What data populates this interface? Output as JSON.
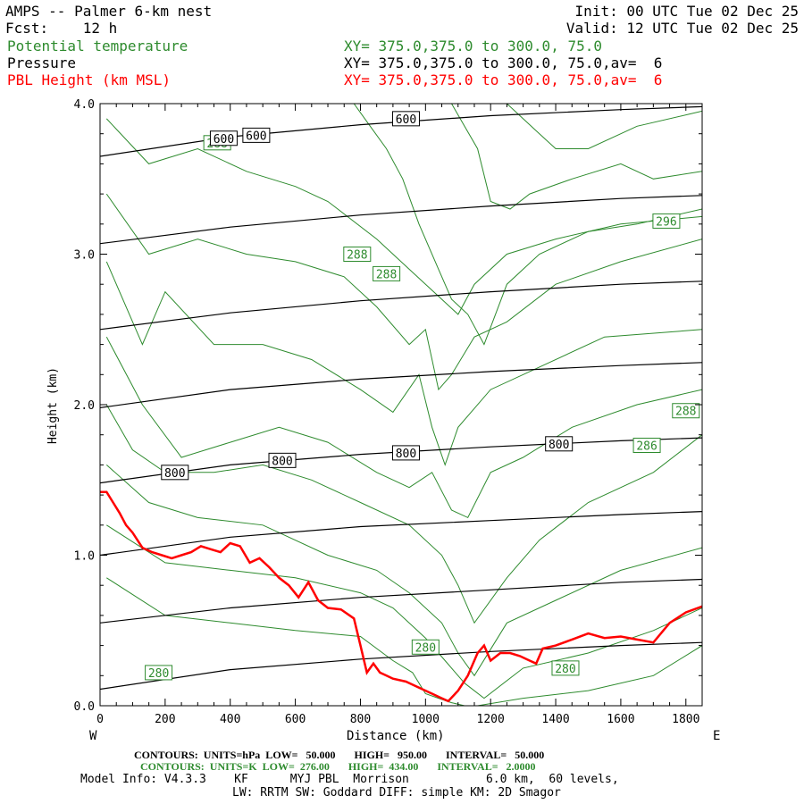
{
  "header": {
    "title": "AMPS -- Palmer 6-km nest",
    "fcst": "Fcst:    12 h",
    "init": "Init: 00 UTC Tue 02 Dec 25",
    "valid": "Valid: 12 UTC Tue 02 Dec 25",
    "fields": [
      {
        "name": "Potential temperature",
        "xy": "XY= 375.0,375.0 to 300.0, 75.0",
        "color": "#2e8b2e"
      },
      {
        "name": "Pressure",
        "xy": "XY= 375.0,375.0 to 300.0, 75.0,av=  6",
        "color": "#000000"
      },
      {
        "name": "PBL Height (km MSL)",
        "xy": "XY= 375.0,375.0 to 300.0, 75.0,av=  6",
        "color": "#ff0000"
      }
    ]
  },
  "footer": {
    "pressure_contours": "CONTOURS:  UNITS=hPa  LOW=   50.000       HIGH=   950.00       INTERVAL=   50.000",
    "theta_contours": "CONTOURS:  UNITS=K  LOW=  276.00       HIGH=  434.00       INTERVAL=   2.0000",
    "model_info_1": "Model Info: V4.3.3    KF      MYJ PBL  Morrison           6.0 km,  60 levels,",
    "model_info_2": "LW: RRTM SW: Goddard DIFF: simple KM: 2D Smagor"
  },
  "colors": {
    "theta": "#2e8b2e",
    "pressure": "#000000",
    "pbl": "#ff0000"
  },
  "chart_data": {
    "type": "line",
    "title": "AMPS -- Palmer 6-km nest",
    "xlabel": "Distance (km)",
    "ylabel": "Height (km)",
    "xlim": [
      0,
      1850
    ],
    "ylim": [
      0,
      4.0
    ],
    "xticks": [
      0,
      200,
      400,
      600,
      800,
      1000,
      1200,
      1400,
      1600,
      1800
    ],
    "yticks": [
      0.0,
      1.0,
      2.0,
      3.0,
      4.0
    ],
    "ytick_labels": [
      "0.0",
      "1.0",
      "2.0",
      "3.0",
      "4.0"
    ],
    "x_left_end": "W",
    "x_right_end": "E",
    "pressure_lines": [
      {
        "x": [
          0,
          400,
          800,
          1200,
          1600,
          1850
        ],
        "y": [
          3.65,
          3.78,
          3.86,
          3.92,
          3.96,
          3.98
        ]
      },
      {
        "x": [
          0,
          400,
          800,
          1200,
          1600,
          1850
        ],
        "y": [
          3.07,
          3.18,
          3.26,
          3.32,
          3.37,
          3.39
        ]
      },
      {
        "x": [
          0,
          400,
          800,
          1200,
          1600,
          1850
        ],
        "y": [
          2.5,
          2.61,
          2.69,
          2.75,
          2.8,
          2.82
        ]
      },
      {
        "x": [
          0,
          400,
          800,
          1200,
          1600,
          1850
        ],
        "y": [
          1.98,
          2.1,
          2.17,
          2.22,
          2.26,
          2.28
        ]
      },
      {
        "x": [
          0,
          400,
          800,
          1200,
          1600,
          1850
        ],
        "y": [
          1.48,
          1.6,
          1.67,
          1.72,
          1.76,
          1.78
        ]
      },
      {
        "x": [
          0,
          400,
          800,
          1200,
          1600,
          1850
        ],
        "y": [
          1.0,
          1.12,
          1.19,
          1.23,
          1.27,
          1.29
        ]
      },
      {
        "x": [
          0,
          400,
          800,
          1200,
          1600,
          1850
        ],
        "y": [
          0.55,
          0.65,
          0.72,
          0.77,
          0.82,
          0.84
        ]
      },
      {
        "x": [
          0,
          400,
          800,
          1200,
          1600,
          1850
        ],
        "y": [
          0.11,
          0.24,
          0.31,
          0.36,
          0.4,
          0.42
        ]
      }
    ],
    "pressure_labels": [
      {
        "text": "600",
        "x": 380,
        "y": 3.77
      },
      {
        "text": "600",
        "x": 480,
        "y": 3.79
      },
      {
        "text": "600",
        "x": 940,
        "y": 3.9
      },
      {
        "text": "800",
        "x": 230,
        "y": 1.55
      },
      {
        "text": "800",
        "x": 560,
        "y": 1.63
      },
      {
        "text": "800",
        "x": 940,
        "y": 1.68
      },
      {
        "text": "800",
        "x": 1410,
        "y": 1.74
      }
    ],
    "theta_lines": [
      {
        "x": [
          20,
          200,
          400,
          600,
          800,
          900,
          960,
          1000,
          1040,
          1080,
          1120,
          1160,
          1300,
          1500,
          1700,
          1850
        ],
        "y": [
          0.85,
          0.6,
          0.55,
          0.5,
          0.46,
          0.3,
          0.22,
          0.08,
          0.05,
          0.02,
          0.0,
          0.0,
          0.05,
          0.1,
          0.2,
          0.4
        ]
      },
      {
        "x": [
          20,
          200,
          400,
          600,
          800,
          900,
          1000,
          1060,
          1120,
          1180,
          1300,
          1500,
          1700,
          1850
        ],
        "y": [
          1.2,
          0.95,
          0.9,
          0.85,
          0.75,
          0.65,
          0.45,
          0.3,
          0.15,
          0.05,
          0.25,
          0.35,
          0.5,
          0.65
        ]
      },
      {
        "x": [
          20,
          150,
          300,
          500,
          700,
          850,
          950,
          1050,
          1100,
          1150,
          1250,
          1400,
          1600,
          1850
        ],
        "y": [
          1.6,
          1.35,
          1.25,
          1.2,
          1.0,
          0.9,
          0.75,
          0.55,
          0.35,
          0.2,
          0.55,
          0.7,
          0.9,
          1.05
        ]
      },
      {
        "x": [
          20,
          100,
          200,
          350,
          500,
          650,
          800,
          950,
          1050,
          1100,
          1150,
          1250,
          1350,
          1500,
          1700,
          1850
        ],
        "y": [
          2.0,
          1.7,
          1.55,
          1.55,
          1.6,
          1.5,
          1.35,
          1.2,
          1.0,
          0.8,
          0.55,
          0.85,
          1.1,
          1.35,
          1.55,
          1.8
        ]
      },
      {
        "x": [
          20,
          130,
          250,
          400,
          550,
          700,
          850,
          950,
          1020,
          1080,
          1130,
          1200,
          1300,
          1450,
          1650,
          1850
        ],
        "y": [
          2.45,
          2.0,
          1.65,
          1.75,
          1.85,
          1.75,
          1.55,
          1.45,
          1.55,
          1.3,
          1.25,
          1.55,
          1.65,
          1.85,
          2.0,
          2.1
        ]
      },
      {
        "x": [
          20,
          130,
          200,
          350,
          500,
          650,
          800,
          900,
          980,
          1020,
          1060,
          1100,
          1200,
          1350,
          1550,
          1850
        ],
        "y": [
          2.95,
          2.4,
          2.75,
          2.4,
          2.4,
          2.3,
          2.1,
          1.95,
          2.2,
          1.85,
          1.6,
          1.85,
          2.1,
          2.25,
          2.45,
          2.5
        ]
      },
      {
        "x": [
          20,
          150,
          300,
          450,
          600,
          750,
          850,
          950,
          1000,
          1040,
          1080,
          1150,
          1250,
          1400,
          1600,
          1850
        ],
        "y": [
          3.4,
          3.0,
          3.1,
          3.0,
          2.95,
          2.85,
          2.65,
          2.4,
          2.5,
          2.1,
          2.2,
          2.45,
          2.55,
          2.8,
          2.95,
          3.1
        ]
      },
      {
        "x": [
          20,
          150,
          300,
          450,
          600,
          700,
          850,
          950,
          1050,
          1100,
          1150,
          1250,
          1400,
          1600,
          1850
        ],
        "y": [
          3.9,
          3.6,
          3.7,
          3.55,
          3.45,
          3.35,
          3.1,
          2.9,
          2.7,
          2.6,
          2.8,
          3.0,
          3.1,
          3.2,
          3.25
        ]
      },
      {
        "x": [
          780,
          830,
          880,
          930,
          980,
          1040,
          1080,
          1130,
          1180,
          1250,
          1350,
          1500,
          1650,
          1850
        ],
        "y": [
          4.0,
          3.85,
          3.7,
          3.5,
          3.2,
          2.9,
          2.7,
          2.6,
          2.4,
          2.8,
          3.0,
          3.15,
          3.2,
          3.3
        ]
      },
      {
        "x": [
          1080,
          1120,
          1160,
          1200,
          1260,
          1320,
          1450,
          1600,
          1700,
          1850
        ],
        "y": [
          4.0,
          3.85,
          3.7,
          3.35,
          3.3,
          3.4,
          3.5,
          3.6,
          3.5,
          3.55
        ]
      },
      {
        "x": [
          1250,
          1300,
          1350,
          1400,
          1500,
          1650,
          1850
        ],
        "y": [
          4.0,
          3.9,
          3.8,
          3.7,
          3.7,
          3.85,
          3.95
        ]
      }
    ],
    "theta_labels": [
      {
        "text": "288",
        "x": 360,
        "y": 3.74
      },
      {
        "text": "288",
        "x": 790,
        "y": 3.0
      },
      {
        "text": "288",
        "x": 880,
        "y": 2.87
      },
      {
        "text": "296",
        "x": 1740,
        "y": 3.22
      },
      {
        "text": "288",
        "x": 1800,
        "y": 1.96
      },
      {
        "text": "286",
        "x": 1680,
        "y": 1.73
      },
      {
        "text": "280",
        "x": 1000,
        "y": 0.39
      },
      {
        "text": "280",
        "x": 1430,
        "y": 0.25
      },
      {
        "text": "280",
        "x": 180,
        "y": 0.22
      }
    ],
    "pbl_height": {
      "x": [
        0,
        20,
        40,
        60,
        80,
        100,
        130,
        160,
        190,
        220,
        250,
        280,
        310,
        340,
        370,
        400,
        430,
        460,
        490,
        520,
        550,
        580,
        610,
        640,
        670,
        700,
        740,
        780,
        800,
        820,
        840,
        860,
        880,
        900,
        940,
        980,
        1020,
        1050,
        1070,
        1100,
        1130,
        1160,
        1180,
        1200,
        1230,
        1260,
        1290,
        1320,
        1340,
        1360,
        1400,
        1450,
        1500,
        1550,
        1600,
        1650,
        1700,
        1750,
        1800,
        1850
      ],
      "y": [
        1.42,
        1.42,
        1.35,
        1.28,
        1.2,
        1.15,
        1.05,
        1.02,
        1.0,
        0.98,
        1.0,
        1.02,
        1.06,
        1.04,
        1.02,
        1.08,
        1.06,
        0.95,
        0.98,
        0.92,
        0.85,
        0.8,
        0.72,
        0.82,
        0.7,
        0.65,
        0.64,
        0.58,
        0.4,
        0.22,
        0.28,
        0.22,
        0.2,
        0.18,
        0.16,
        0.12,
        0.08,
        0.05,
        0.03,
        0.1,
        0.2,
        0.35,
        0.4,
        0.3,
        0.35,
        0.35,
        0.33,
        0.3,
        0.28,
        0.38,
        0.4,
        0.44,
        0.48,
        0.45,
        0.46,
        0.44,
        0.42,
        0.55,
        0.62,
        0.66
      ]
    }
  }
}
